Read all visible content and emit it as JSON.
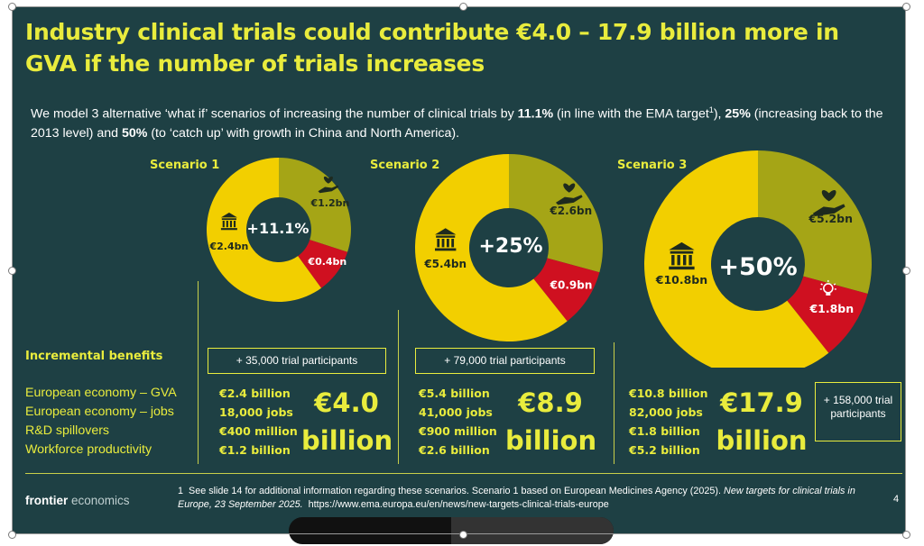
{
  "title": "Industry clinical trials could contribute €4.0 – 17.9 billion more in GVA if the number of trials increases",
  "intro": {
    "part1": "We model 3 alternative ‘what if’ scenarios of increasing the number of clinical trials by ",
    "b1": "11.1%",
    "part2": " (in line with the EMA target",
    "sup": "1",
    "part3": "), ",
    "b2": "25%",
    "part4": " (increasing back to the 2013 level) and ",
    "b3": "50%",
    "part5": " (to ‘catch up’ with growth in China and North America)."
  },
  "colors": {
    "background": "#1e4044",
    "accent": "#e9ec3d",
    "gva": "#f2cf00",
    "workforce": "#a5a516",
    "rnd": "#cf1020",
    "hole": "#1e4044"
  },
  "scenarios": [
    {
      "label": "Scenario 1",
      "center": "+11.1%",
      "gva": "€2.4bn",
      "workforce": "€1.2bn",
      "rnd": "€0.4bn",
      "participants": "+ 35,000 trial participants",
      "values": [
        "€2.4 billion",
        "18,000 jobs",
        "€400 million",
        "€1.2 billion"
      ],
      "total": "€4.0",
      "total_unit": "billion"
    },
    {
      "label": "Scenario 2",
      "center": "+25%",
      "gva": "€5.4bn",
      "workforce": "€2.6bn",
      "rnd": "€0.9bn",
      "participants": "+ 79,000 trial participants",
      "values": [
        "€5.4 billion",
        "41,000 jobs",
        "€900 million",
        "€2.6 billion"
      ],
      "total": "€8.9",
      "total_unit": "billion"
    },
    {
      "label": "Scenario 3",
      "center": "+50%",
      "gva": "€10.8bn",
      "workforce": "€5.2bn",
      "rnd": "€1.8bn",
      "participants": "+ 158,000 trial participants",
      "values": [
        "€10.8 billion",
        "82,000 jobs",
        "€1.8 billion",
        "€5.2 billion"
      ],
      "total": "€17.9",
      "total_unit": "billion"
    }
  ],
  "benefits": {
    "title": "Incremental benefits",
    "items": [
      "European economy – GVA",
      "European economy – jobs",
      "R&D spillovers",
      "Workforce productivity"
    ]
  },
  "footer": {
    "logo_bold": "frontier",
    "logo_thin": " economics",
    "footnote_num": "1",
    "footnote_text": "See slide 14 for additional information regarding these scenarios. Scenario 1 based on European Medicines Agency (2025). ",
    "footnote_italic": "New targets for clinical trials in Europe, 23 September 2025.",
    "footnote_url": "https://www.ema.europa.eu/en/news/new-targets-clinical-trials-europe",
    "page": "4"
  },
  "icons": {
    "gva": "bank-icon",
    "workforce": "hand-heart-icon",
    "rnd": "lightbulb-icon"
  }
}
